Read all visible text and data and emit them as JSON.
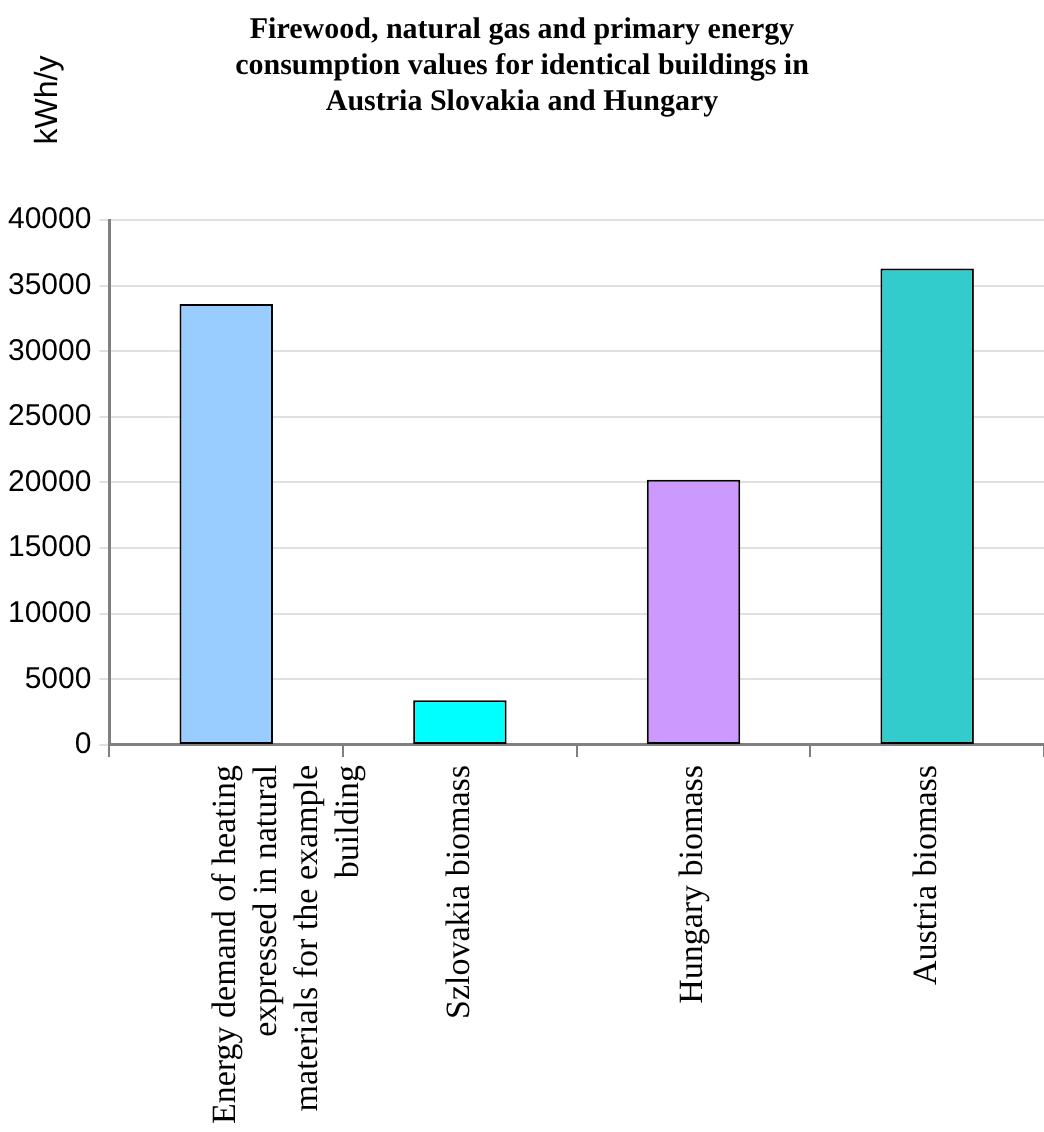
{
  "chart_data": {
    "type": "bar",
    "title": "Firewood, natural gas and primary energy consumption values for identical buildings in Austria Slovakia and Hungary",
    "ylabel": "kWh/y",
    "categories": [
      "Energy demand of heating expressed in natural materials for the example building",
      "Szlovakia biomass",
      "Hungary biomass",
      "Austria biomass"
    ],
    "values": [
      33600,
      3400,
      20200,
      36300
    ],
    "colors": [
      "#99ccff",
      "#00ffff",
      "#cc99ff",
      "#33cccc"
    ],
    "ylim": [
      0,
      40000
    ],
    "yticks": [
      0,
      5000,
      10000,
      15000,
      20000,
      25000,
      30000,
      35000,
      40000
    ],
    "grid": "y",
    "legend": false
  }
}
